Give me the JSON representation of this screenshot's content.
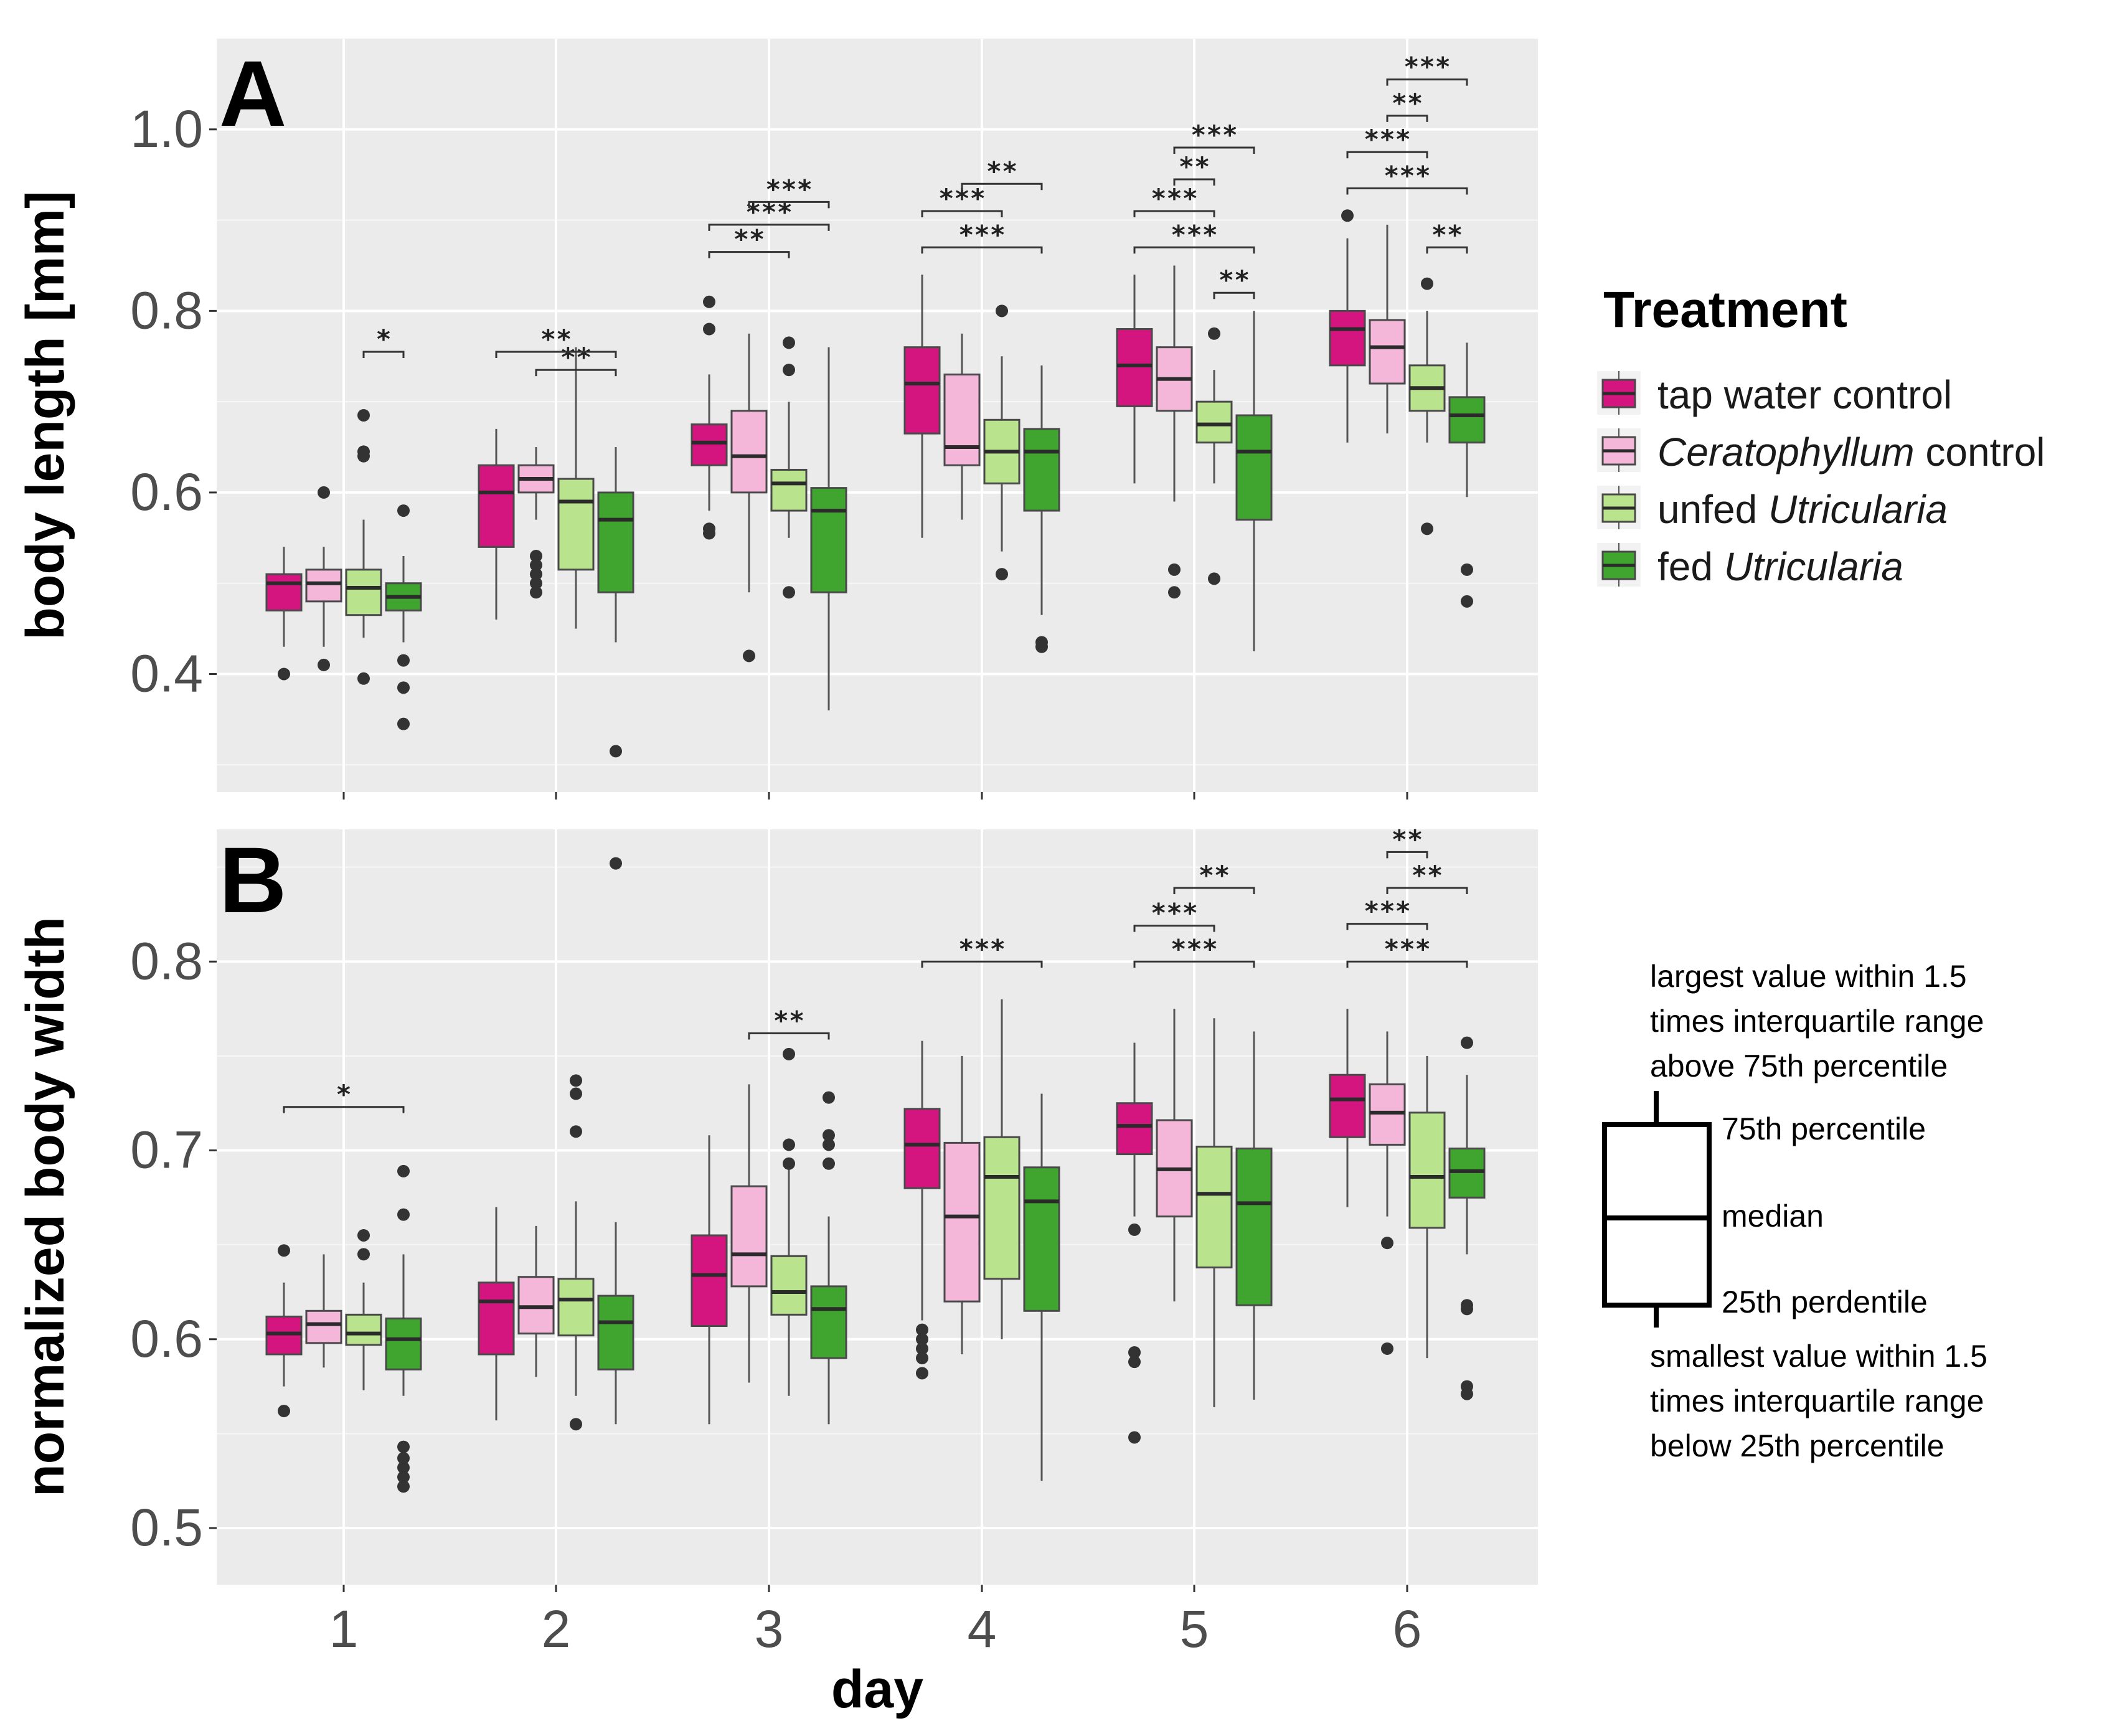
{
  "chart_data": [
    {
      "panel": "A",
      "type": "boxplot",
      "xlabel": "day",
      "ylabel": "body length [mm]",
      "categories": [
        "1",
        "2",
        "3",
        "4",
        "5",
        "6"
      ],
      "yticks": [
        "0.4",
        "0.6",
        "0.8",
        "1.0"
      ],
      "ylim": [
        0.27,
        1.1
      ],
      "series": [
        {
          "name": "tap water control",
          "boxes": [
            {
              "low": 0.43,
              "q1": 0.47,
              "med": 0.5,
              "q3": 0.51,
              "high": 0.54,
              "outliers": [
                0.4
              ]
            },
            {
              "low": 0.46,
              "q1": 0.54,
              "med": 0.6,
              "q3": 0.63,
              "high": 0.67,
              "outliers": []
            },
            {
              "low": 0.58,
              "q1": 0.63,
              "med": 0.655,
              "q3": 0.675,
              "high": 0.73,
              "outliers": [
                0.78,
                0.81,
                0.555,
                0.56
              ]
            },
            {
              "low": 0.55,
              "q1": 0.665,
              "med": 0.72,
              "q3": 0.76,
              "high": 0.84,
              "outliers": []
            },
            {
              "low": 0.61,
              "q1": 0.695,
              "med": 0.74,
              "q3": 0.78,
              "high": 0.84,
              "outliers": []
            },
            {
              "low": 0.655,
              "q1": 0.74,
              "med": 0.78,
              "q3": 0.8,
              "high": 0.88,
              "outliers": [
                0.905
              ]
            }
          ]
        },
        {
          "name": "Ceratophyllum control",
          "boxes": [
            {
              "low": 0.43,
              "q1": 0.48,
              "med": 0.5,
              "q3": 0.515,
              "high": 0.54,
              "outliers": [
                0.6,
                0.41
              ]
            },
            {
              "low": 0.57,
              "q1": 0.6,
              "med": 0.615,
              "q3": 0.63,
              "high": 0.65,
              "outliers": [
                0.53,
                0.52,
                0.51,
                0.5,
                0.49
              ]
            },
            {
              "low": 0.49,
              "q1": 0.6,
              "med": 0.64,
              "q3": 0.69,
              "high": 0.775,
              "outliers": [
                0.42
              ]
            },
            {
              "low": 0.57,
              "q1": 0.63,
              "med": 0.65,
              "q3": 0.73,
              "high": 0.775,
              "outliers": []
            },
            {
              "low": 0.59,
              "q1": 0.69,
              "med": 0.725,
              "q3": 0.76,
              "high": 0.85,
              "outliers": [
                0.515,
                0.49
              ]
            },
            {
              "low": 0.665,
              "q1": 0.72,
              "med": 0.76,
              "q3": 0.79,
              "high": 0.895,
              "outliers": []
            }
          ]
        },
        {
          "name": "unfed Utricularia",
          "boxes": [
            {
              "low": 0.44,
              "q1": 0.465,
              "med": 0.495,
              "q3": 0.515,
              "high": 0.57,
              "outliers": [
                0.685,
                0.645,
                0.64,
                0.395
              ]
            },
            {
              "low": 0.45,
              "q1": 0.515,
              "med": 0.59,
              "q3": 0.615,
              "high": 0.76,
              "outliers": []
            },
            {
              "low": 0.55,
              "q1": 0.58,
              "med": 0.61,
              "q3": 0.625,
              "high": 0.7,
              "outliers": [
                0.765,
                0.735,
                0.49
              ]
            },
            {
              "low": 0.535,
              "q1": 0.61,
              "med": 0.645,
              "q3": 0.68,
              "high": 0.75,
              "outliers": [
                0.8,
                0.51
              ]
            },
            {
              "low": 0.61,
              "q1": 0.655,
              "med": 0.675,
              "q3": 0.7,
              "high": 0.735,
              "outliers": [
                0.775,
                0.505
              ]
            },
            {
              "low": 0.655,
              "q1": 0.69,
              "med": 0.715,
              "q3": 0.74,
              "high": 0.8,
              "outliers": [
                0.83,
                0.56
              ]
            }
          ]
        },
        {
          "name": "fed Utricularia",
          "boxes": [
            {
              "low": 0.435,
              "q1": 0.47,
              "med": 0.485,
              "q3": 0.5,
              "high": 0.53,
              "outliers": [
                0.58,
                0.415,
                0.385,
                0.345
              ]
            },
            {
              "low": 0.435,
              "q1": 0.49,
              "med": 0.57,
              "q3": 0.6,
              "high": 0.65,
              "outliers": [
                0.315
              ]
            },
            {
              "low": 0.36,
              "q1": 0.49,
              "med": 0.58,
              "q3": 0.605,
              "high": 0.76,
              "outliers": []
            },
            {
              "low": 0.465,
              "q1": 0.58,
              "med": 0.645,
              "q3": 0.67,
              "high": 0.74,
              "outliers": [
                0.435,
                0.43
              ]
            },
            {
              "low": 0.425,
              "q1": 0.57,
              "med": 0.645,
              "q3": 0.685,
              "high": 0.8,
              "outliers": []
            },
            {
              "low": 0.595,
              "q1": 0.655,
              "med": 0.685,
              "q3": 0.705,
              "high": 0.765,
              "outliers": [
                0.515,
                0.48
              ]
            }
          ]
        }
      ],
      "significance": [
        {
          "day": 1,
          "from": 2,
          "to": 3,
          "y": 0.755,
          "label": "*"
        },
        {
          "day": 2,
          "from": 1,
          "to": 3,
          "y": 0.735,
          "label": "**"
        },
        {
          "day": 2,
          "from": 0,
          "to": 3,
          "y": 0.755,
          "label": "**"
        },
        {
          "day": 3,
          "from": 0,
          "to": 2,
          "y": 0.865,
          "label": "**"
        },
        {
          "day": 3,
          "from": 0,
          "to": 3,
          "y": 0.895,
          "label": "***"
        },
        {
          "day": 3,
          "from": 1,
          "to": 3,
          "y": 0.92,
          "label": "***"
        },
        {
          "day": 4,
          "from": 0,
          "to": 3,
          "y": 0.87,
          "label": "***"
        },
        {
          "day": 4,
          "from": 0,
          "to": 2,
          "y": 0.91,
          "label": "***"
        },
        {
          "day": 4,
          "from": 1,
          "to": 3,
          "y": 0.94,
          "label": "**"
        },
        {
          "day": 5,
          "from": 2,
          "to": 3,
          "y": 0.82,
          "label": "**"
        },
        {
          "day": 5,
          "from": 0,
          "to": 3,
          "y": 0.87,
          "label": "***"
        },
        {
          "day": 5,
          "from": 0,
          "to": 2,
          "y": 0.91,
          "label": "***"
        },
        {
          "day": 5,
          "from": 1,
          "to": 2,
          "y": 0.945,
          "label": "**"
        },
        {
          "day": 5,
          "from": 1,
          "to": 3,
          "y": 0.98,
          "label": "***"
        },
        {
          "day": 6,
          "from": 2,
          "to": 3,
          "y": 0.87,
          "label": "**"
        },
        {
          "day": 6,
          "from": 0,
          "to": 3,
          "y": 0.935,
          "label": "***"
        },
        {
          "day": 6,
          "from": 0,
          "to": 2,
          "y": 0.975,
          "label": "***"
        },
        {
          "day": 6,
          "from": 1,
          "to": 2,
          "y": 1.015,
          "label": "**"
        },
        {
          "day": 6,
          "from": 1,
          "to": 3,
          "y": 1.055,
          "label": "***"
        }
      ]
    },
    {
      "panel": "B",
      "type": "boxplot",
      "xlabel": "day",
      "ylabel": "normalized body width",
      "categories": [
        "1",
        "2",
        "3",
        "4",
        "5",
        "6"
      ],
      "yticks": [
        "0.5",
        "0.6",
        "0.7",
        "0.8"
      ],
      "ylim": [
        0.47,
        0.87
      ],
      "series": [
        {
          "name": "tap water control",
          "boxes": [
            {
              "low": 0.575,
              "q1": 0.592,
              "med": 0.603,
              "q3": 0.612,
              "high": 0.63,
              "outliers": [
                0.647,
                0.562
              ]
            },
            {
              "low": 0.557,
              "q1": 0.592,
              "med": 0.62,
              "q3": 0.63,
              "high": 0.67,
              "outliers": []
            },
            {
              "low": 0.555,
              "q1": 0.607,
              "med": 0.634,
              "q3": 0.655,
              "high": 0.708,
              "outliers": []
            },
            {
              "low": 0.61,
              "q1": 0.68,
              "med": 0.703,
              "q3": 0.722,
              "high": 0.758,
              "outliers": [
                0.605,
                0.6,
                0.595,
                0.59,
                0.582
              ]
            },
            {
              "low": 0.665,
              "q1": 0.698,
              "med": 0.713,
              "q3": 0.725,
              "high": 0.757,
              "outliers": [
                0.658,
                0.593,
                0.588,
                0.548
              ]
            },
            {
              "low": 0.67,
              "q1": 0.707,
              "med": 0.727,
              "q3": 0.74,
              "high": 0.775,
              "outliers": []
            }
          ]
        },
        {
          "name": "Ceratophyllum control",
          "boxes": [
            {
              "low": 0.585,
              "q1": 0.598,
              "med": 0.608,
              "q3": 0.615,
              "high": 0.645,
              "outliers": []
            },
            {
              "low": 0.58,
              "q1": 0.603,
              "med": 0.617,
              "q3": 0.633,
              "high": 0.66,
              "outliers": []
            },
            {
              "low": 0.577,
              "q1": 0.628,
              "med": 0.645,
              "q3": 0.681,
              "high": 0.735,
              "outliers": []
            },
            {
              "low": 0.592,
              "q1": 0.62,
              "med": 0.665,
              "q3": 0.704,
              "high": 0.75,
              "outliers": []
            },
            {
              "low": 0.62,
              "q1": 0.665,
              "med": 0.69,
              "q3": 0.716,
              "high": 0.775,
              "outliers": []
            },
            {
              "low": 0.665,
              "q1": 0.703,
              "med": 0.72,
              "q3": 0.735,
              "high": 0.763,
              "outliers": [
                0.651,
                0.595
              ]
            }
          ]
        },
        {
          "name": "unfed Utricularia",
          "boxes": [
            {
              "low": 0.573,
              "q1": 0.597,
              "med": 0.603,
              "q3": 0.613,
              "high": 0.63,
              "outliers": [
                0.655,
                0.645
              ]
            },
            {
              "low": 0.57,
              "q1": 0.602,
              "med": 0.621,
              "q3": 0.632,
              "high": 0.673,
              "outliers": [
                0.737,
                0.73,
                0.71,
                0.555
              ]
            },
            {
              "low": 0.57,
              "q1": 0.613,
              "med": 0.625,
              "q3": 0.644,
              "high": 0.69,
              "outliers": [
                0.751,
                0.703,
                0.693
              ]
            },
            {
              "low": 0.6,
              "q1": 0.632,
              "med": 0.686,
              "q3": 0.707,
              "high": 0.78,
              "outliers": []
            },
            {
              "low": 0.564,
              "q1": 0.638,
              "med": 0.677,
              "q3": 0.702,
              "high": 0.77,
              "outliers": []
            },
            {
              "low": 0.59,
              "q1": 0.659,
              "med": 0.686,
              "q3": 0.72,
              "high": 0.75,
              "outliers": []
            }
          ]
        },
        {
          "name": "fed Utricularia",
          "boxes": [
            {
              "low": 0.57,
              "q1": 0.584,
              "med": 0.6,
              "q3": 0.611,
              "high": 0.645,
              "outliers": [
                0.689,
                0.666,
                0.543,
                0.537,
                0.532,
                0.527,
                0.522
              ]
            },
            {
              "low": 0.555,
              "q1": 0.584,
              "med": 0.609,
              "q3": 0.623,
              "high": 0.662,
              "outliers": [
                0.852
              ]
            },
            {
              "low": 0.555,
              "q1": 0.59,
              "med": 0.616,
              "q3": 0.628,
              "high": 0.665,
              "outliers": [
                0.728,
                0.708,
                0.703,
                0.693
              ]
            },
            {
              "low": 0.525,
              "q1": 0.615,
              "med": 0.673,
              "q3": 0.691,
              "high": 0.73,
              "outliers": []
            },
            {
              "low": 0.568,
              "q1": 0.618,
              "med": 0.672,
              "q3": 0.701,
              "high": 0.763,
              "outliers": []
            },
            {
              "low": 0.645,
              "q1": 0.675,
              "med": 0.689,
              "q3": 0.701,
              "high": 0.74,
              "outliers": [
                0.757,
                0.618,
                0.616,
                0.575,
                0.571
              ]
            }
          ]
        }
      ],
      "significance": [
        {
          "day": 1,
          "from": 0,
          "to": 3,
          "y": 0.723,
          "label": "*"
        },
        {
          "day": 3,
          "from": 1,
          "to": 3,
          "y": 0.762,
          "label": "**"
        },
        {
          "day": 4,
          "from": 0,
          "to": 3,
          "y": 0.8,
          "label": "***"
        },
        {
          "day": 5,
          "from": 0,
          "to": 3,
          "y": 0.8,
          "label": "***"
        },
        {
          "day": 5,
          "from": 0,
          "to": 2,
          "y": 0.819,
          "label": "***"
        },
        {
          "day": 5,
          "from": 1,
          "to": 3,
          "y": 0.839,
          "label": "**"
        },
        {
          "day": 6,
          "from": 0,
          "to": 3,
          "y": 0.8,
          "label": "***"
        },
        {
          "day": 6,
          "from": 0,
          "to": 2,
          "y": 0.82,
          "label": "***"
        },
        {
          "day": 6,
          "from": 1,
          "to": 3,
          "y": 0.839,
          "label": "**"
        },
        {
          "day": 6,
          "from": 1,
          "to": 2,
          "y": 0.858,
          "label": "**"
        }
      ]
    }
  ],
  "legend": {
    "title": "Treatment",
    "items": [
      {
        "parts": [
          {
            "text": "tap water control",
            "italic": false
          }
        ],
        "color": "#d4157f"
      },
      {
        "parts": [
          {
            "text": "Ceratophyllum",
            "italic": true
          },
          {
            "text": " control",
            "italic": false
          }
        ],
        "color": "#f4b6d9"
      },
      {
        "parts": [
          {
            "text": "unfed ",
            "italic": false
          },
          {
            "text": "Utricularia",
            "italic": true
          }
        ],
        "color": "#b9e38c"
      },
      {
        "parts": [
          {
            "text": "fed ",
            "italic": false
          },
          {
            "text": "Utricularia",
            "italic": true
          }
        ],
        "color": "#3fa52e"
      }
    ]
  },
  "boxplot_guide": {
    "top_lines": [
      "largest value within 1.5",
      "times interquartile range",
      "above 75th percentile"
    ],
    "q3_label": "75th percentile",
    "median_label": "median",
    "q1_label": "25th perdentile",
    "bottom_lines": [
      "smallest value within 1.5",
      "times interquartile range",
      "below 25th percentile"
    ]
  }
}
